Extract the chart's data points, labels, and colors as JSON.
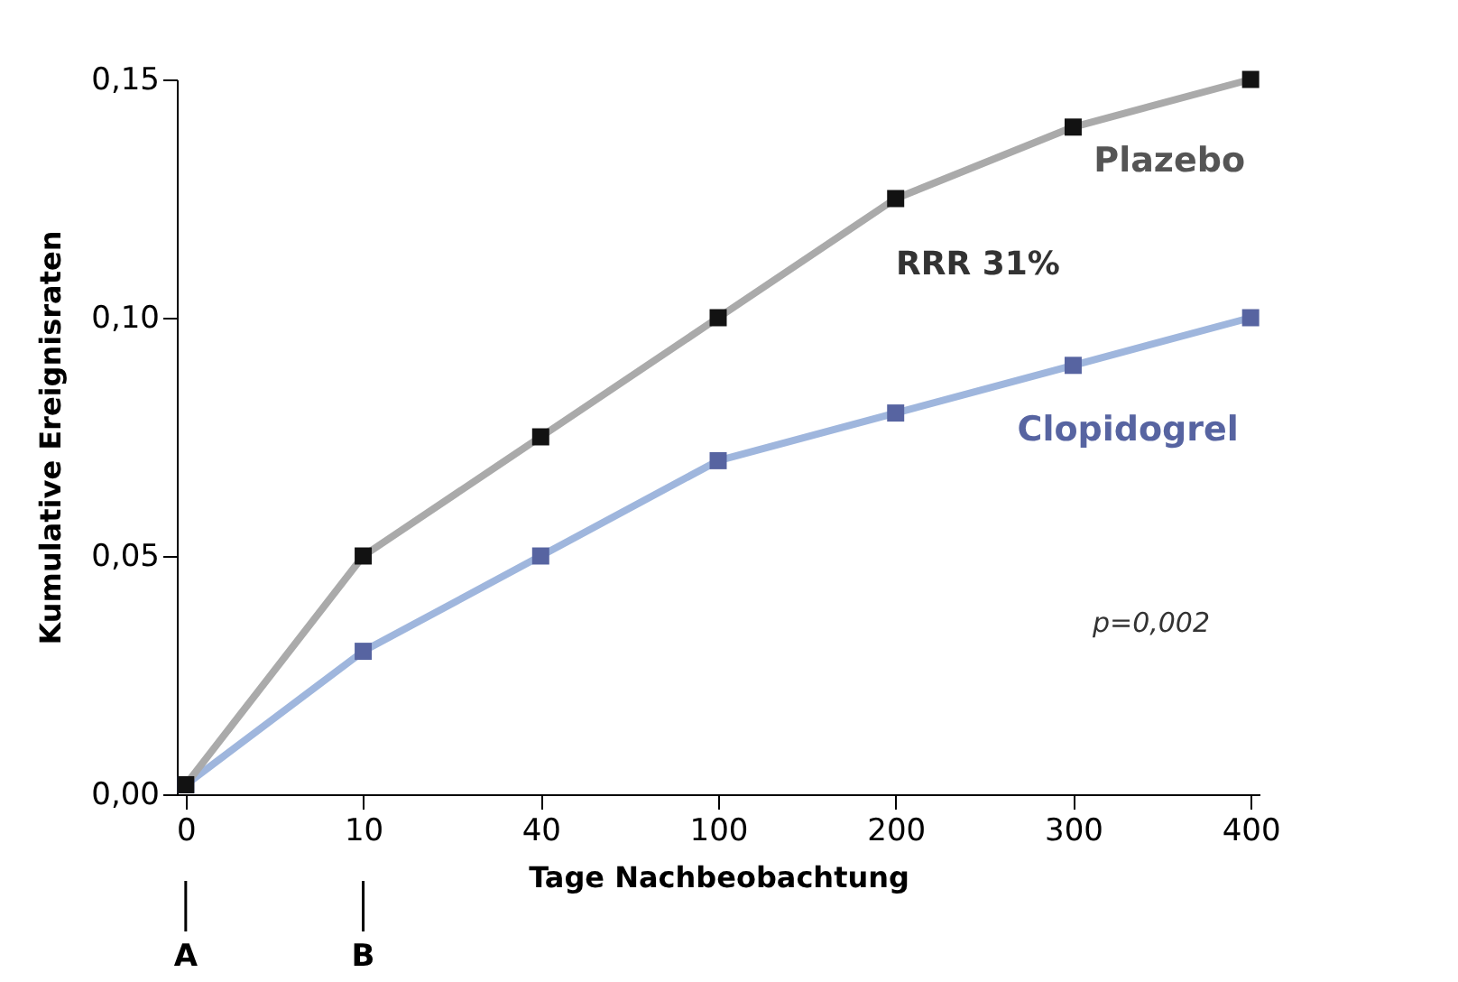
{
  "chart_data": {
    "type": "line",
    "xlabel": "Tage Nachbeobachtung",
    "ylabel": "Kumulative Ereignisraten",
    "categories": [
      "0",
      "10",
      "40",
      "100",
      "200",
      "300",
      "400"
    ],
    "series": [
      {
        "name": "Plazebo",
        "color": "#aaaaaa",
        "values": [
          0.002,
          0.05,
          0.075,
          0.1,
          0.125,
          0.14,
          0.15
        ]
      },
      {
        "name": "Clopidogrel",
        "color": "#9fb6dd",
        "values": [
          0.002,
          0.03,
          0.05,
          0.07,
          0.08,
          0.09,
          0.1
        ]
      }
    ],
    "ylim": [
      0,
      0.15
    ],
    "yticks": [
      {
        "value": 0,
        "label": "0,00"
      },
      {
        "value": 0.05,
        "label": "0,05"
      },
      {
        "value": 0.1,
        "label": "0,10"
      },
      {
        "value": 0.15,
        "label": "0,15"
      }
    ],
    "marker": "square",
    "line_style": "solid",
    "grid": false,
    "legend": false,
    "annotations": [
      "RRR 31%",
      "p=0,002",
      {
        "text": "A",
        "x": "0"
      },
      {
        "text": "B",
        "x": "10"
      }
    ]
  }
}
